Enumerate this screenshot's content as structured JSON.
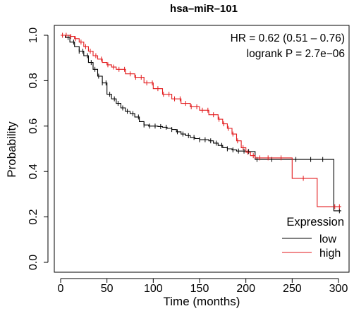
{
  "chart_data": {
    "type": "line",
    "subtype": "kaplan-meier-survival",
    "title": "hsa–miR–101",
    "xlabel": "Time (months)",
    "ylabel": "Probability",
    "xlim": [
      0,
      305
    ],
    "ylim": [
      0,
      1.03
    ],
    "xticks": [
      0,
      50,
      100,
      150,
      200,
      250,
      300
    ],
    "yticks": [
      0.0,
      0.2,
      0.4,
      0.6,
      0.8,
      1.0
    ],
    "xtick_labels": [
      "0",
      "50",
      "100",
      "150",
      "200",
      "250",
      "300"
    ],
    "ytick_labels": [
      "0.0",
      "0.2",
      "0.4",
      "0.6",
      "0.8",
      "1.0"
    ],
    "grid": false,
    "annotations": [
      "HR = 0.62 (0.51 – 0.76)",
      "logrank P = 2.7e−06"
    ],
    "legend": {
      "title": "Expression",
      "placement": "bottom-right",
      "entries": [
        {
          "label": "low",
          "color": "#000000"
        },
        {
          "label": "high",
          "color": "#e31a1c"
        }
      ]
    },
    "series": [
      {
        "name": "low",
        "color": "#000000",
        "x": [
          0,
          5,
          10,
          15,
          20,
          25,
          30,
          35,
          40,
          45,
          50,
          55,
          60,
          65,
          70,
          75,
          80,
          85,
          90,
          95,
          100,
          105,
          110,
          115,
          120,
          125,
          130,
          135,
          140,
          145,
          150,
          155,
          160,
          165,
          170,
          175,
          180,
          185,
          190,
          200,
          210,
          250,
          290,
          295,
          303
        ],
        "y": [
          1.0,
          0.99,
          0.97,
          0.95,
          0.93,
          0.91,
          0.88,
          0.85,
          0.82,
          0.79,
          0.74,
          0.72,
          0.7,
          0.68,
          0.665,
          0.655,
          0.64,
          0.62,
          0.605,
          0.6,
          0.6,
          0.598,
          0.595,
          0.59,
          0.585,
          0.575,
          0.565,
          0.558,
          0.55,
          0.545,
          0.54,
          0.54,
          0.535,
          0.525,
          0.515,
          0.505,
          0.5,
          0.495,
          0.49,
          0.488,
          0.453,
          0.453,
          0.453,
          0.227,
          0.227
        ],
        "censor_x": [
          8,
          14,
          20,
          24,
          29,
          33,
          37,
          41,
          45,
          49,
          53,
          58,
          62,
          67,
          72,
          78,
          84,
          90,
          96,
          102,
          108,
          114,
          120,
          126,
          132,
          138,
          144,
          150,
          156,
          162,
          168,
          174,
          180,
          186,
          192,
          198,
          203,
          212,
          228,
          254,
          270,
          283,
          301
        ]
      },
      {
        "name": "high",
        "color": "#e31a1c",
        "x": [
          0,
          10,
          15,
          20,
          25,
          30,
          35,
          40,
          45,
          50,
          55,
          60,
          70,
          80,
          90,
          100,
          110,
          120,
          130,
          140,
          150,
          160,
          170,
          175,
          180,
          185,
          190,
          195,
          200,
          205,
          210,
          220,
          230,
          250,
          260,
          277,
          290,
          303
        ],
        "y": [
          1.0,
          0.995,
          0.985,
          0.97,
          0.95,
          0.93,
          0.91,
          0.895,
          0.88,
          0.87,
          0.86,
          0.85,
          0.83,
          0.815,
          0.79,
          0.765,
          0.74,
          0.72,
          0.7,
          0.685,
          0.67,
          0.65,
          0.63,
          0.61,
          0.59,
          0.565,
          0.535,
          0.505,
          0.485,
          0.47,
          0.46,
          0.46,
          0.46,
          0.37,
          0.37,
          0.245,
          0.245,
          0.245
        ],
        "censor_x": [
          2,
          6,
          11,
          16,
          22,
          27,
          32,
          38,
          44,
          51,
          57,
          63,
          69,
          75,
          81,
          87,
          93,
          99,
          105,
          111,
          117,
          123,
          129,
          135,
          141,
          147,
          153,
          159,
          165,
          171,
          176,
          181,
          186,
          191,
          197,
          202,
          208,
          215,
          224,
          238,
          262,
          296,
          301
        ]
      }
    ]
  }
}
